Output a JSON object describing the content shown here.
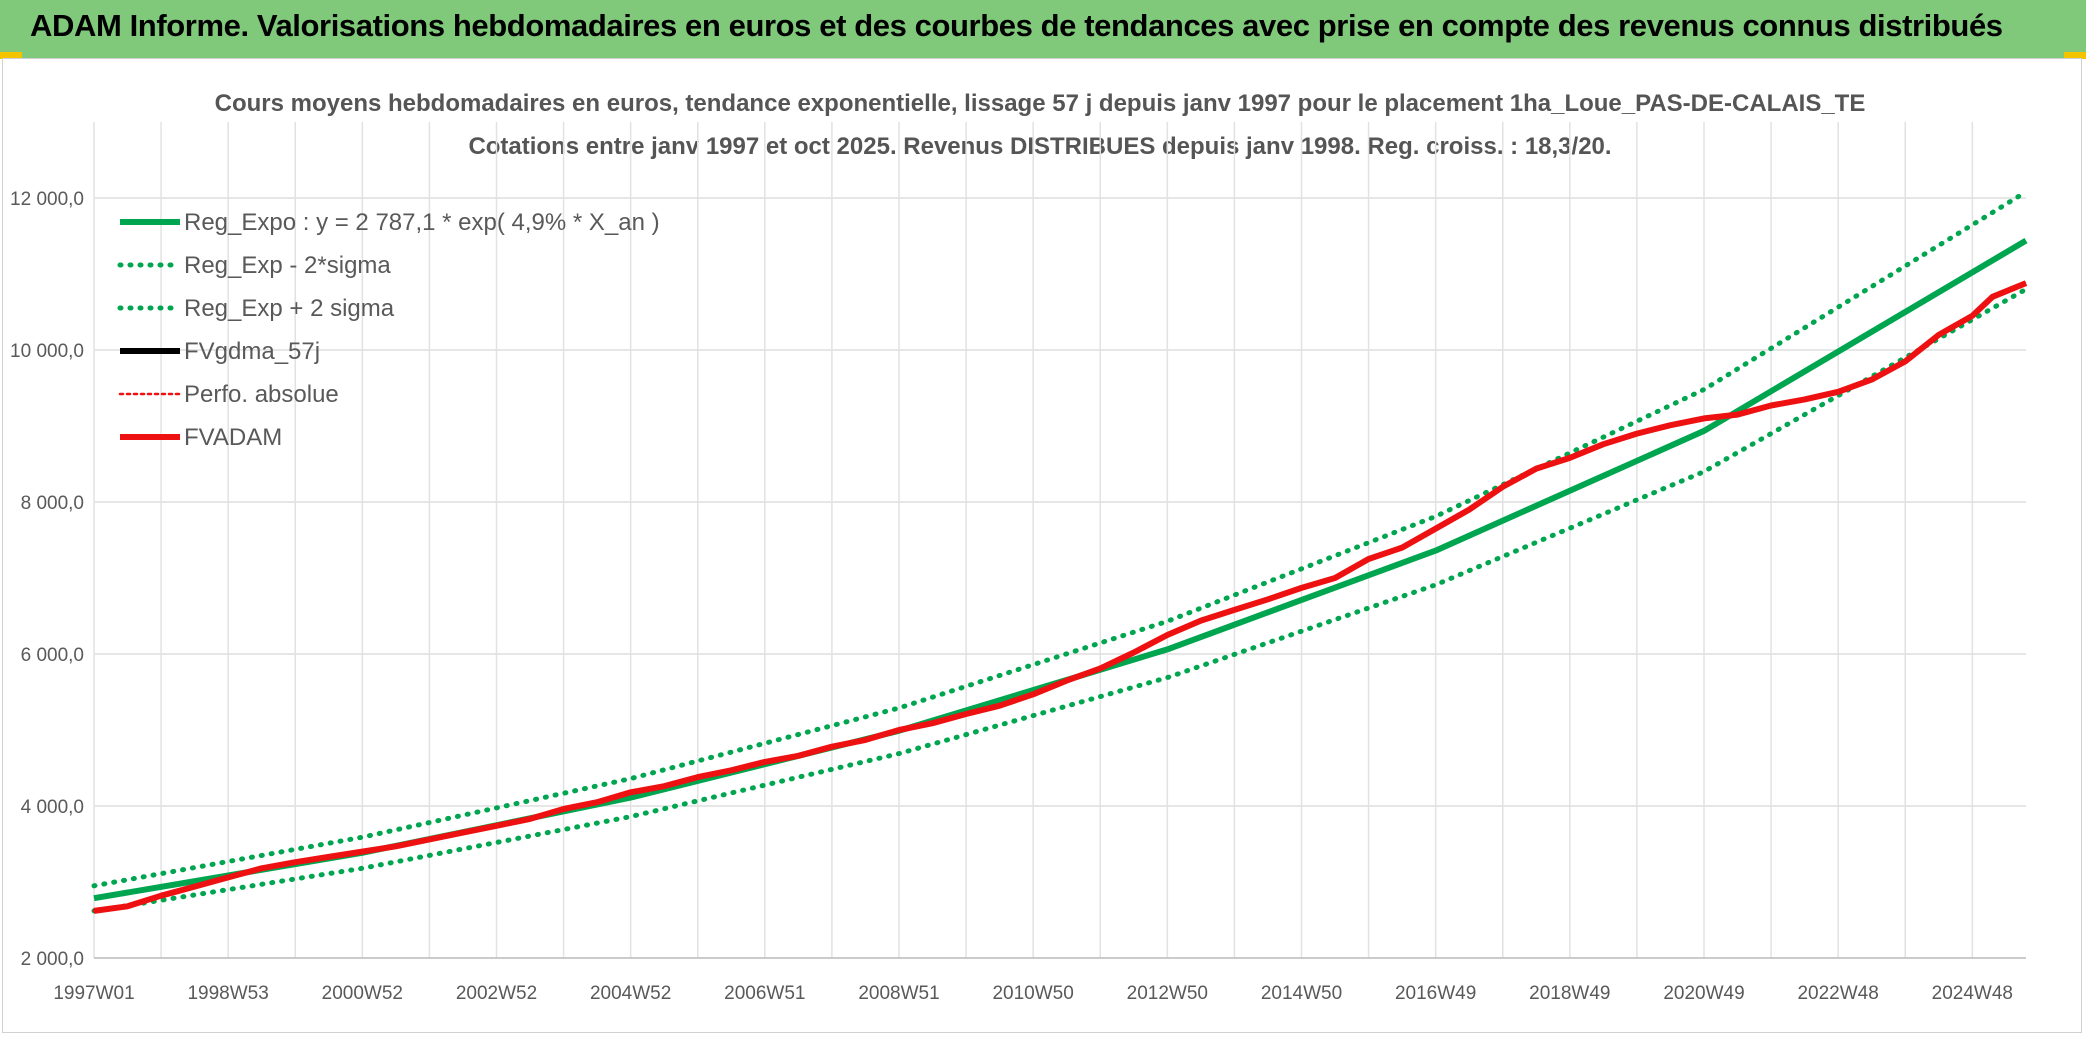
{
  "banner": {
    "title": "ADAM Informe. Valorisations hebdomadaires en euros et des courbes de tendances avec prise en compte des revenus connus distribués"
  },
  "colors": {
    "banner_bg": "#80c97b",
    "green": "#00a550",
    "red": "#ee1111",
    "black": "#000000",
    "grid": "#dddddd",
    "corner": "#f4c400"
  },
  "chart_data": {
    "type": "line",
    "title": "Cours moyens hebdomadaires en euros, tendance exponentielle, lissage 57 j depuis janv 1997 pour le placement 1ha_Loue_PAS-DE-CALAIS_TE",
    "subtitle": "Cotations entre janv 1997 et oct 2025. Revenus DISTRIBUES depuis janv 1998. Reg. croiss. : 18,3/20.",
    "xlabel": "",
    "ylabel": "",
    "x_range": [
      1997.0,
      2025.8
    ],
    "ylim": [
      2000,
      13000
    ],
    "y_ticks": [
      2000,
      4000,
      6000,
      8000,
      10000,
      12000
    ],
    "y_tick_labels": [
      "2 000,0",
      "4 000,0",
      "6 000,0",
      "8 000,0",
      "10 000,0",
      "12 000,0"
    ],
    "x_ticks": [
      1997.0,
      1999.0,
      2001.0,
      2003.0,
      2005.0,
      2007.0,
      2009.0,
      2011.0,
      2013.0,
      2015.0,
      2017.0,
      2019.0,
      2021.0,
      2023.0,
      2025.0
    ],
    "x_tick_labels": [
      "1997W01",
      "1998W53",
      "2000W52",
      "2002W52",
      "2004W52",
      "2006W51",
      "2008W51",
      "2010W50",
      "2012W50",
      "2014W50",
      "2016W49",
      "2018W49",
      "2020W49",
      "2022W48",
      "2024W48"
    ],
    "grid": true,
    "legend_position": "top-left",
    "series": [
      {
        "name": "Reg_Expo : y = 2 787,1 * exp( 4,9% *  X_an )",
        "color": "#00a550",
        "style": "solid",
        "x": [
          1997.0,
          2001.0,
          2005.0,
          2009.0,
          2013.0,
          2017.0,
          2021.0,
          2025.8
        ],
        "values": [
          2787,
          3384,
          4110,
          4990,
          6060,
          7360,
          8935,
          11440
        ]
      },
      {
        "name": "Reg_Exp - 2*sigma",
        "color": "#00a550",
        "style": "dotted",
        "x": [
          1997.0,
          2001.0,
          2005.0,
          2009.0,
          2013.0,
          2017.0,
          2021.0,
          2025.8
        ],
        "values": [
          2620,
          3180,
          3860,
          4690,
          5690,
          6910,
          8400,
          10800
        ]
      },
      {
        "name": "Reg_Exp + 2 sigma",
        "color": "#00a550",
        "style": "dotted",
        "x": [
          1997.0,
          2001.0,
          2005.0,
          2009.0,
          2013.0,
          2017.0,
          2021.0,
          2025.8
        ],
        "values": [
          2950,
          3590,
          4360,
          5290,
          6430,
          7810,
          9480,
          12080
        ]
      },
      {
        "name": "FVgdma_57j",
        "color": "#000000",
        "style": "solid",
        "x": [
          1997.0,
          1997.5,
          1998.0,
          1998.5,
          1999.0,
          1999.5,
          2000.0,
          2000.5,
          2001.0,
          2001.5,
          2002.0,
          2002.5,
          2003.0,
          2003.5,
          2004.0,
          2004.5,
          2005.0,
          2005.5,
          2006.0,
          2006.5,
          2007.0,
          2007.5,
          2008.0,
          2008.5,
          2009.0,
          2009.5,
          2010.0,
          2010.5,
          2011.0,
          2011.5,
          2012.0,
          2012.5,
          2013.0,
          2013.5,
          2014.0,
          2014.5,
          2015.0,
          2015.5,
          2016.0,
          2016.5,
          2017.0,
          2017.5,
          2018.0,
          2018.5,
          2019.0,
          2019.5,
          2020.0,
          2020.5,
          2021.0,
          2021.5,
          2022.0,
          2022.5,
          2023.0,
          2023.5,
          2024.0,
          2024.5,
          2025.0,
          2025.3,
          2025.8
        ],
        "values": [
          2620,
          2680,
          2820,
          2940,
          3060,
          3180,
          3260,
          3330,
          3400,
          3470,
          3560,
          3650,
          3740,
          3830,
          3960,
          4050,
          4180,
          4260,
          4380,
          4470,
          4580,
          4660,
          4780,
          4870,
          5000,
          5090,
          5210,
          5320,
          5470,
          5650,
          5810,
          6020,
          6250,
          6440,
          6580,
          6720,
          6870,
          7000,
          7250,
          7400,
          7650,
          7900,
          8200,
          8440,
          8580,
          8760,
          8900,
          9010,
          9100,
          9150,
          9270,
          9350,
          9450,
          9610,
          9850,
          10200,
          10450,
          10700,
          10880
        ]
      },
      {
        "name": "Perfo. absolue",
        "color": "#ee1111",
        "style": "dotted",
        "x": [
          1997.0,
          1997.5,
          1998.0,
          1998.5,
          1999.0,
          1999.5,
          2000.0,
          2000.5,
          2001.0,
          2001.5,
          2002.0,
          2002.5,
          2003.0,
          2003.5,
          2004.0,
          2004.5,
          2005.0,
          2005.5,
          2006.0,
          2006.5,
          2007.0,
          2007.5,
          2008.0,
          2008.5,
          2009.0,
          2009.5,
          2010.0,
          2010.5,
          2011.0,
          2011.5,
          2012.0,
          2012.5,
          2013.0,
          2013.5,
          2014.0,
          2014.5,
          2015.0,
          2015.5,
          2016.0,
          2016.5,
          2017.0,
          2017.5,
          2018.0,
          2018.5,
          2019.0,
          2019.5,
          2020.0,
          2020.5,
          2021.0,
          2021.5,
          2022.0,
          2022.5,
          2023.0,
          2023.5,
          2024.0,
          2024.5,
          2025.0,
          2025.3,
          2025.8
        ],
        "values": [
          2620,
          2680,
          2820,
          2940,
          3060,
          3180,
          3260,
          3330,
          3400,
          3470,
          3560,
          3650,
          3740,
          3830,
          3960,
          4050,
          4180,
          4260,
          4380,
          4470,
          4580,
          4660,
          4780,
          4870,
          5000,
          5090,
          5210,
          5320,
          5470,
          5650,
          5810,
          6020,
          6250,
          6440,
          6580,
          6720,
          6870,
          7000,
          7250,
          7400,
          7650,
          7900,
          8200,
          8440,
          8580,
          8760,
          8900,
          9010,
          9100,
          9150,
          9270,
          9350,
          9450,
          9610,
          9850,
          10200,
          10450,
          10700,
          10880
        ]
      },
      {
        "name": "FVADAM",
        "color": "#ee1111",
        "style": "solid",
        "x": [
          1997.0,
          1997.5,
          1998.0,
          1998.5,
          1999.0,
          1999.5,
          2000.0,
          2000.5,
          2001.0,
          2001.5,
          2002.0,
          2002.5,
          2003.0,
          2003.5,
          2004.0,
          2004.5,
          2005.0,
          2005.5,
          2006.0,
          2006.5,
          2007.0,
          2007.5,
          2008.0,
          2008.5,
          2009.0,
          2009.5,
          2010.0,
          2010.5,
          2011.0,
          2011.5,
          2012.0,
          2012.5,
          2013.0,
          2013.5,
          2014.0,
          2014.5,
          2015.0,
          2015.5,
          2016.0,
          2016.5,
          2017.0,
          2017.5,
          2018.0,
          2018.5,
          2019.0,
          2019.5,
          2020.0,
          2020.5,
          2021.0,
          2021.5,
          2022.0,
          2022.5,
          2023.0,
          2023.5,
          2024.0,
          2024.5,
          2025.0,
          2025.3,
          2025.8
        ],
        "values": [
          2620,
          2680,
          2820,
          2940,
          3060,
          3180,
          3260,
          3330,
          3400,
          3470,
          3560,
          3650,
          3740,
          3830,
          3960,
          4050,
          4180,
          4260,
          4380,
          4470,
          4580,
          4660,
          4780,
          4870,
          5000,
          5090,
          5210,
          5320,
          5470,
          5650,
          5810,
          6020,
          6250,
          6440,
          6580,
          6720,
          6870,
          7000,
          7250,
          7400,
          7650,
          7900,
          8200,
          8440,
          8580,
          8760,
          8900,
          9010,
          9100,
          9150,
          9270,
          9350,
          9450,
          9610,
          9850,
          10200,
          10450,
          10700,
          10880
        ]
      }
    ]
  }
}
